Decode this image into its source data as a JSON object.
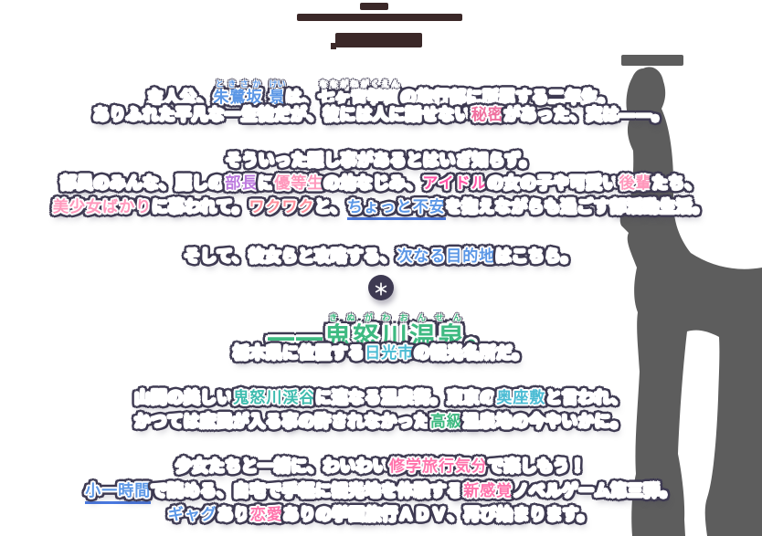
{
  "palette": {
    "background": "#ffffff",
    "outline": "#3e3a52",
    "body_text": "#ffffff",
    "underline": "#4a79e0",
    "bar": "#3b2828",
    "silhouette": "#5d5d5d",
    "blue": "#5b97e6",
    "pink_red": "#ef6f9e",
    "purple": "#bd7ade",
    "pink": "#ff98bc",
    "hot_pink": "#ff55a6",
    "coral": "#ff8f9b",
    "strong_pink": "#ff74ac",
    "green": "#3eba81",
    "teal": "#4cbcd4",
    "green_teal": "#3fbcaf"
  },
  "divider": {
    "symbol": "＊"
  },
  "story": {
    "lines": [
      {
        "segments": [
          {
            "t": "主人公、"
          },
          {
            "t": "朱鷺坂",
            "ruby": "ときさか",
            "s": "blue"
          },
          {
            "t": " ",
            "s": "blue"
          },
          {
            "t": "景",
            "ruby": "けい",
            "s": "blue"
          },
          {
            "t": "は、"
          },
          {
            "t": "七ヶ音学園",
            "ruby": "なながねがくえん"
          },
          {
            "t": "の旅行部に所属する二年生。"
          }
        ]
      },
      {
        "segments": [
          {
            "t": "ありふれた平凡な一生徒だが、彼には人に話せない"
          },
          {
            "t": "秘密",
            "s": "pink_red"
          },
          {
            "t": "があった、実は――。"
          }
        ]
      },
      {
        "segments": [
          {
            "t": "そういった隠し事があるとはいざ知らず。"
          }
        ]
      },
      {
        "segments": [
          {
            "t": "部員のみんな、麗しの"
          },
          {
            "t": "部長",
            "s": "purple"
          },
          {
            "t": "に"
          },
          {
            "t": "優等生",
            "s": "pink"
          },
          {
            "t": "の幼なじみ、"
          },
          {
            "t": "アイドル",
            "s": "hot_pink"
          },
          {
            "t": "の女の子や可愛い"
          },
          {
            "t": "後輩",
            "s": "pink"
          },
          {
            "t": "たち、"
          }
        ]
      },
      {
        "segments": [
          {
            "t": "美少女ばかり",
            "s": "pink"
          },
          {
            "t": "に慕われて。"
          },
          {
            "t": "ワクワク",
            "s": "coral"
          },
          {
            "t": "と、"
          },
          {
            "t": "ちょっと不安",
            "s": "blue",
            "u": true
          },
          {
            "t": "を抱えながらも過ごす部活動生活。"
          }
        ]
      },
      {
        "segments": [
          {
            "t": "そして、彼女らと攻略する、"
          },
          {
            "t": "次なる目的地",
            "s": "blue"
          },
          {
            "t": "はこちら。"
          }
        ]
      },
      {
        "segments": [
          {
            "t": "――",
            "s": "green"
          },
          {
            "t": "鬼怒川温泉",
            "ruby": "きぬがわおんせん",
            "s": "green"
          },
          {
            "t": "。",
            "s": "green"
          }
        ]
      },
      {
        "segments": [
          {
            "t": "栃木県に位置する"
          },
          {
            "t": "日光市",
            "s": "teal"
          },
          {
            "t": "の観光名所だ。"
          }
        ]
      },
      {
        "segments": [
          {
            "t": "山間の美しい"
          },
          {
            "t": "鬼怒川渓谷",
            "s": "green_teal"
          },
          {
            "t": "に連なる温泉街。東京の"
          },
          {
            "t": "奥座敷",
            "s": "teal"
          },
          {
            "t": "と言われ、"
          }
        ]
      },
      {
        "segments": [
          {
            "t": "かつては庶民が入る事の許されなかった"
          },
          {
            "t": "高級",
            "s": "green"
          },
          {
            "t": "温泉地の今やいかに。"
          }
        ]
      },
      {
        "segments": [
          {
            "t": "少女たちと一緒に、わいわい"
          },
          {
            "t": "修学旅行気分",
            "s": "strong_pink"
          },
          {
            "t": "で楽しもう！"
          }
        ]
      },
      {
        "segments": [
          {
            "t": "小一時間",
            "s": "blue",
            "u": true
          },
          {
            "t": "で読める、自宅で手軽に観光地を体験する"
          },
          {
            "t": "新感覚",
            "s": "strong_pink"
          },
          {
            "t": "ノベルゲーム第三弾。"
          }
        ]
      },
      {
        "segments": [
          {
            "t": "ギャグ",
            "s": "blue"
          },
          {
            "t": "あり"
          },
          {
            "t": "恋愛",
            "s": "strong_pink"
          },
          {
            "t": "ありの学園旅行ＡＤＶ、再び始まります。"
          }
        ]
      }
    ]
  }
}
